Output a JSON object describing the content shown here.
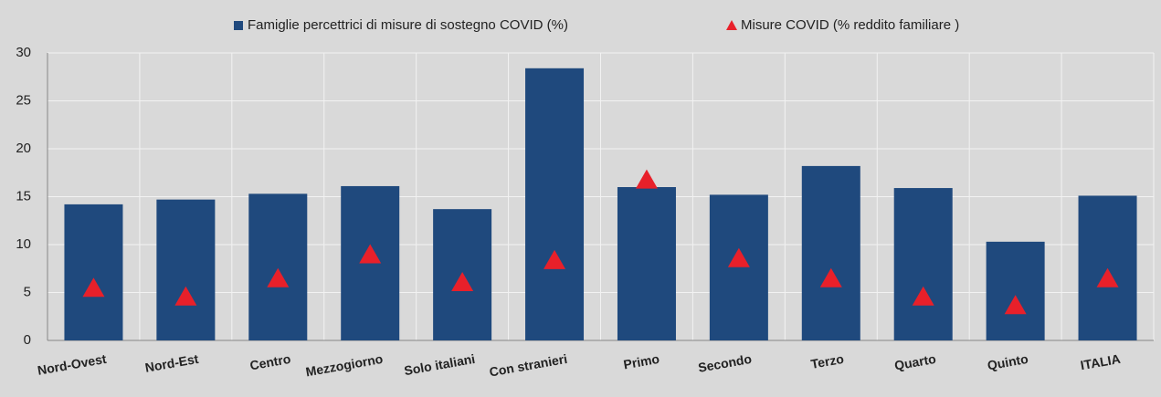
{
  "chart_data": {
    "type": "bar",
    "categories": [
      "Nord-Ovest",
      "Nord-Est",
      "Centro",
      "Mezzogiorno",
      "Solo italiani",
      "Con stranieri",
      "Primo",
      "Secondo",
      "Terzo",
      "Quarto",
      "Quinto",
      "ITALIA"
    ],
    "series": [
      {
        "name": "Famiglie percettrici di misure di sostegno COVID (%)",
        "type": "bar",
        "color": "#1f497d",
        "values": [
          14.2,
          14.7,
          15.3,
          16.1,
          13.7,
          28.4,
          16.0,
          15.2,
          18.2,
          15.9,
          10.3,
          15.1
        ]
      },
      {
        "name": "Misure COVID (% reddito familiare )",
        "type": "scatter",
        "marker": "triangle",
        "color": "#e8202a",
        "values": [
          5.4,
          4.5,
          6.4,
          8.9,
          6.0,
          8.3,
          16.7,
          8.5,
          6.4,
          4.5,
          3.6,
          6.4
        ]
      }
    ],
    "ylim": [
      0,
      30
    ],
    "yticks": [
      0,
      5,
      10,
      15,
      20,
      25,
      30
    ],
    "grid": true,
    "legend": "top"
  }
}
